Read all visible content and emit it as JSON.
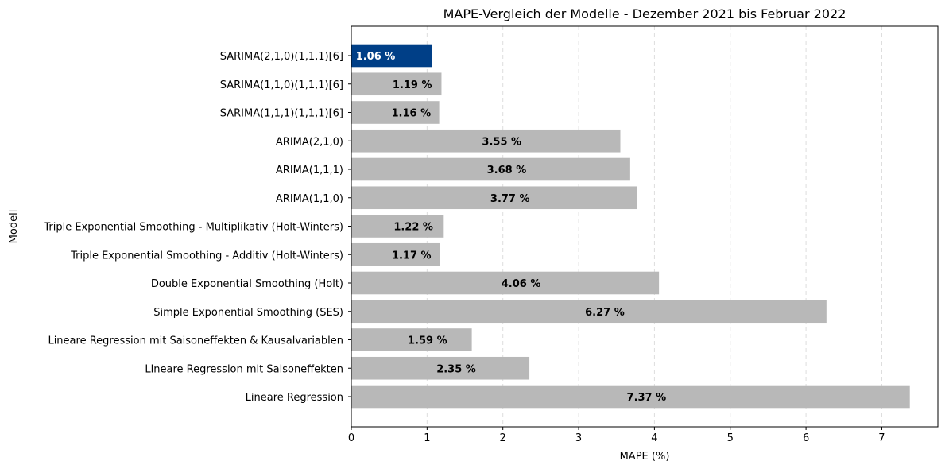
{
  "chart_data": {
    "type": "bar",
    "orientation": "horizontal",
    "title": "MAPE-Vergleich der Modelle - Dezember 2021 bis Februar 2022",
    "xlabel": "MAPE (%)",
    "ylabel": "Modell",
    "xlim": [
      0,
      7.74
    ],
    "x_ticks": [
      "0",
      "1",
      "2",
      "3",
      "4",
      "5",
      "6",
      "7"
    ],
    "grid": "vertical dashed",
    "categories": [
      "SARIMA(2,1,0)(1,1,1)[6]",
      "SARIMA(1,1,0)(1,1,1)[6]",
      "SARIMA(1,1,1)(1,1,1)[6]",
      "ARIMA(2,1,0)",
      "ARIMA(1,1,1)",
      "ARIMA(1,1,0)",
      "Triple Exponential Smoothing - Multiplikativ (Holt-Winters)",
      "Triple Exponential Smoothing - Additiv (Holt-Winters)",
      "Double Exponential Smoothing (Holt)",
      "Simple Exponential Smoothing (SES)",
      "Lineare Regression mit Saisoneffekten & Kausalvariablen",
      "Lineare Regression mit Saisoneffekten",
      "Lineare Regression"
    ],
    "values": [
      1.06,
      1.19,
      1.16,
      3.55,
      3.68,
      3.77,
      1.22,
      1.17,
      4.06,
      6.27,
      1.59,
      2.35,
      7.37
    ],
    "value_labels": [
      "1.06 %",
      "1.19 %",
      "1.16 %",
      "3.55 %",
      "3.68 %",
      "3.77 %",
      "1.22 %",
      "1.17 %",
      "4.06 %",
      "6.27 %",
      "1.59 %",
      "2.35 %",
      "7.37 %"
    ],
    "highlight_index": 0,
    "colors": {
      "bar": "#b8b8b8",
      "highlight": "#003f87",
      "label": "#000000",
      "highlight_label": "#ffffff",
      "grid": "#dddddd"
    }
  }
}
